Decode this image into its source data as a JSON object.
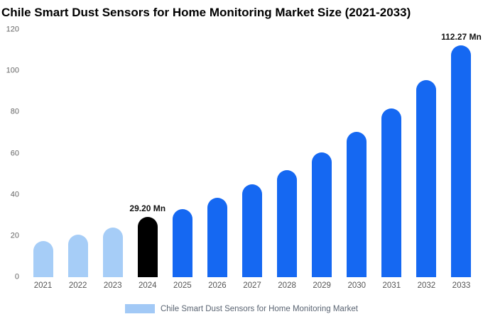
{
  "title": "Chile Smart Dust Sensors for Home Monitoring Market Size (2021-2033)",
  "legend": {
    "label": "Chile Smart Dust Sensors for Home Monitoring Market",
    "swatch_color": "#a2c9f6"
  },
  "chart_data": {
    "type": "bar",
    "title": "Chile Smart Dust Sensors for Home Monitoring Market Size (2021-2033)",
    "xlabel": "",
    "ylabel": "",
    "ylim": [
      0,
      120
    ],
    "yticks": [
      0,
      20,
      40,
      60,
      80,
      100,
      120
    ],
    "grid": false,
    "legend_position": "bottom-center",
    "categories": [
      "2021",
      "2022",
      "2023",
      "2024",
      "2025",
      "2026",
      "2027",
      "2028",
      "2029",
      "2030",
      "2031",
      "2032",
      "2033"
    ],
    "values": [
      17.5,
      20.5,
      24.0,
      29.2,
      33.0,
      38.5,
      45.0,
      52.0,
      60.5,
      70.5,
      82.0,
      95.5,
      112.27
    ],
    "colors": [
      "#a6cdf7",
      "#a6cdf7",
      "#a6cdf7",
      "#000000",
      "#1568f2",
      "#1568f2",
      "#1568f2",
      "#1568f2",
      "#1568f2",
      "#1568f2",
      "#1568f2",
      "#1568f2",
      "#1568f2"
    ],
    "annotations": [
      {
        "index": 3,
        "text": "29.20 Mn"
      },
      {
        "index": 12,
        "text": "112.27 Mn"
      }
    ]
  }
}
